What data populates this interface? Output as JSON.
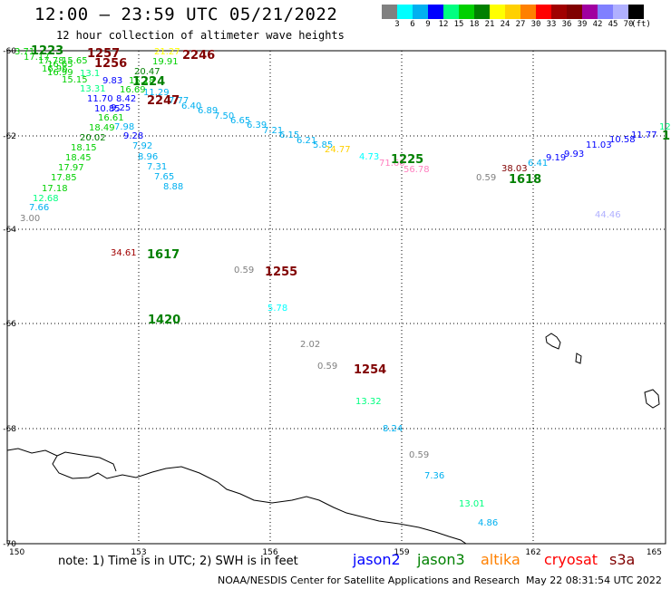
{
  "header": {
    "title": "12:00 — 23:59 UTC 05/21/2022",
    "subtitle": "12 hour collection of altimeter wave heights"
  },
  "colorbar": {
    "colors": [
      "#808080",
      "#00ffff",
      "#00b0f0",
      "#0000ff",
      "#00ff80",
      "#00d000",
      "#008000",
      "#ffff00",
      "#ffd000",
      "#ff8000",
      "#ff0000",
      "#a00000",
      "#800000",
      "#a000a0",
      "#8080ff",
      "#b0b0ff",
      "#000000"
    ],
    "labels": [
      "3",
      "6",
      "9",
      "12",
      "15",
      "18",
      "21",
      "24",
      "27",
      "30",
      "33",
      "36",
      "39",
      "42",
      "45",
      "70",
      "(ft)"
    ]
  },
  "axes": {
    "x_ticks": [
      "150",
      "153",
      "156",
      "159",
      "162",
      "165"
    ],
    "y_ticks": [
      "-60",
      "-62",
      "-64",
      "-66",
      "-68",
      "-70"
    ]
  },
  "wave_readings": [
    {
      "t": "3.71",
      "c": "#00d000"
    },
    {
      "t": "17.17",
      "c": "#00d000"
    },
    {
      "t": "17.78",
      "c": "#00d000"
    },
    {
      "t": "16.65",
      "c": "#00d000"
    },
    {
      "t": "15.65",
      "c": "#00d000"
    },
    {
      "t": "16.96",
      "c": "#00d000"
    },
    {
      "t": "16.99",
      "c": "#00d000"
    },
    {
      "t": "13.1",
      "c": "#00ff80"
    },
    {
      "t": "15.15",
      "c": "#00d000"
    },
    {
      "t": "13.31",
      "c": "#00ff80"
    },
    {
      "t": "11.70",
      "c": "#0000ff"
    },
    {
      "t": "10.85",
      "c": "#0000ff"
    },
    {
      "t": "16.61",
      "c": "#00d000"
    },
    {
      "t": "18.49",
      "c": "#00d000"
    },
    {
      "t": "20.02",
      "c": "#008000"
    },
    {
      "t": "18.15",
      "c": "#00d000"
    },
    {
      "t": "18.45",
      "c": "#00d000"
    },
    {
      "t": "17.97",
      "c": "#00d000"
    },
    {
      "t": "17.85",
      "c": "#00d000"
    },
    {
      "t": "17.18",
      "c": "#00d000"
    },
    {
      "t": "12.68",
      "c": "#00ff80"
    },
    {
      "t": "7.66",
      "c": "#00b0f0"
    },
    {
      "t": "3.00",
      "c": "#808080"
    },
    {
      "t": "21.27",
      "c": "#ffff00"
    },
    {
      "t": "19.91",
      "c": "#00d000"
    },
    {
      "t": "20.47",
      "c": "#008000"
    },
    {
      "t": "9.83",
      "c": "#0000ff"
    },
    {
      "t": "15.18",
      "c": "#00d000"
    },
    {
      "t": "8.42",
      "c": "#0000ff"
    },
    {
      "t": "16.69",
      "c": "#00d000"
    },
    {
      "t": "11.29",
      "c": "#00b0f0"
    },
    {
      "t": "9.25",
      "c": "#0000ff"
    },
    {
      "t": "7.98",
      "c": "#00b0f0"
    },
    {
      "t": "9.28",
      "c": "#0000ff"
    },
    {
      "t": "7.92",
      "c": "#00b0f0"
    },
    {
      "t": "8.96",
      "c": "#00b0f0"
    },
    {
      "t": "7.31",
      "c": "#00b0f0"
    },
    {
      "t": "7.65",
      "c": "#00b0f0"
    },
    {
      "t": "8.88",
      "c": "#00b0f0"
    },
    {
      "t": "7.77",
      "c": "#00b0f0"
    },
    {
      "t": "6.40",
      "c": "#00b0f0"
    },
    {
      "t": "6.89",
      "c": "#00b0f0"
    },
    {
      "t": "7.50",
      "c": "#00b0f0"
    },
    {
      "t": "6.65",
      "c": "#00b0f0"
    },
    {
      "t": "6.39",
      "c": "#00b0f0"
    },
    {
      "t": "7.21",
      "c": "#00b0f0"
    },
    {
      "t": "6.15",
      "c": "#00b0f0"
    },
    {
      "t": "6.21",
      "c": "#00b0f0"
    },
    {
      "t": "5.85",
      "c": "#00b0f0"
    },
    {
      "t": "24.77",
      "c": "#ffd000"
    },
    {
      "t": "4.73",
      "c": "#00ffff"
    },
    {
      "t": "71.60",
      "c": "#ff80c0"
    },
    {
      "t": "56.78",
      "c": "#ff80c0"
    },
    {
      "t": "38.03",
      "c": "#800000"
    },
    {
      "t": "0.59",
      "c": "#808080"
    },
    {
      "t": "6.41",
      "c": "#00b0f0"
    },
    {
      "t": "9.19",
      "c": "#0000ff"
    },
    {
      "t": "9.93",
      "c": "#0000ff"
    },
    {
      "t": "11.03",
      "c": "#0000ff"
    },
    {
      "t": "10.58",
      "c": "#0000ff"
    },
    {
      "t": "11.77",
      "c": "#0000ff"
    },
    {
      "t": "12",
      "c": "#00ff80"
    },
    {
      "t": "44.46",
      "c": "#b0b0ff"
    },
    {
      "t": "34.61",
      "c": "#a00000"
    },
    {
      "t": "0.59",
      "c": "#808080"
    },
    {
      "t": "5.78",
      "c": "#00ffff"
    },
    {
      "t": "2.02",
      "c": "#808080"
    },
    {
      "t": "0.59",
      "c": "#808080"
    },
    {
      "t": "13.32",
      "c": "#00ff80"
    },
    {
      "t": "8.24",
      "c": "#00b0f0"
    },
    {
      "t": "0.59",
      "c": "#808080"
    },
    {
      "t": "7.36",
      "c": "#00b0f0"
    },
    {
      "t": "13.01",
      "c": "#00ff80"
    },
    {
      "t": "4.86",
      "c": "#00b0f0"
    },
    {
      "t": "5.25",
      "c": "#00ffff"
    }
  ],
  "pass_times": [
    {
      "t": "1223",
      "c": "#008000"
    },
    {
      "t": "1257",
      "c": "#800000"
    },
    {
      "t": "1256",
      "c": "#800000"
    },
    {
      "t": "2246",
      "c": "#800000"
    },
    {
      "t": "1224",
      "c": "#008000"
    },
    {
      "t": "2247",
      "c": "#800000"
    },
    {
      "t": "1225",
      "c": "#008000"
    },
    {
      "t": "1618",
      "c": "#008000"
    },
    {
      "t": "1617",
      "c": "#008000"
    },
    {
      "t": "1255",
      "c": "#800000"
    },
    {
      "t": "1420",
      "c": "#008000"
    },
    {
      "t": "1254",
      "c": "#800000"
    },
    {
      "t": "1",
      "c": "#008000"
    }
  ],
  "footer": {
    "note": "note: 1) Time is in UTC; 2) SWH is in feet",
    "legend": [
      {
        "label": "jason2",
        "color": "#0000ff"
      },
      {
        "label": "jason3",
        "color": "#008000"
      },
      {
        "label": "altika",
        "color": "#ff8000"
      },
      {
        "label": "cryosat",
        "color": "#ff0000"
      },
      {
        "label": "s3a",
        "color": "#800000"
      }
    ],
    "credit": "NOAA/NESDIS Center for Satellite Applications and Research",
    "timestamp": "May 22 08:31:54 UTC 2022"
  }
}
